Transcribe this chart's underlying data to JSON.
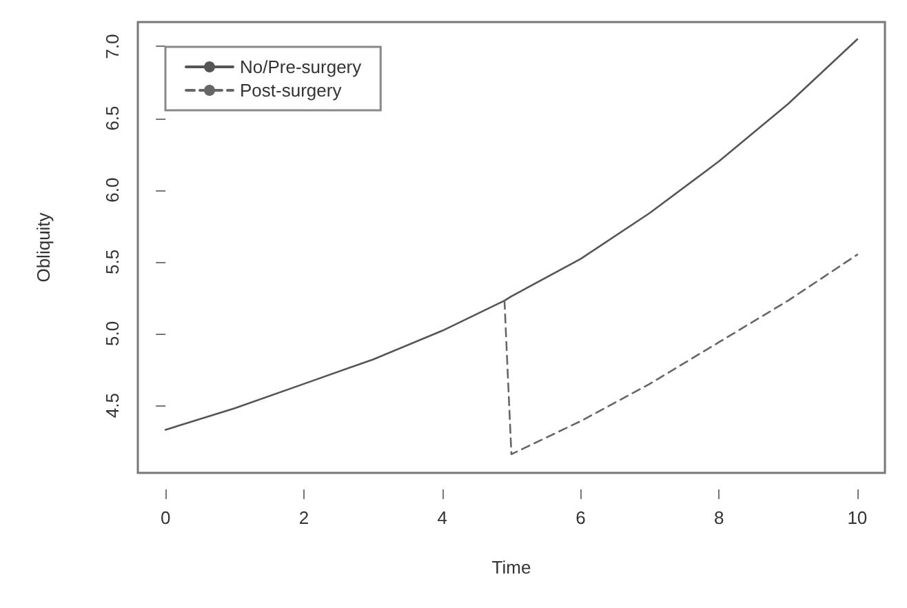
{
  "chart_data": {
    "type": "line",
    "xlabel": "Time",
    "ylabel": "Obliquity",
    "xlim": [
      -0.4,
      10.4
    ],
    "xticks": [
      0,
      2,
      4,
      6,
      8,
      10
    ],
    "ylim": [
      4.03,
      7.17
    ],
    "yticks": [
      4.5,
      {
        "value": 5,
        "label": "5.0"
      },
      5.5,
      {
        "value": 6,
        "label": "6.0"
      },
      6.5,
      {
        "value": 7,
        "label": "7.0"
      }
    ],
    "grid": false,
    "legend": "top left",
    "marker": "none",
    "series": [
      {
        "name": "No/Pre-surgery",
        "color": "#555555",
        "line_style": "solid",
        "x": [
          0,
          1,
          2,
          3,
          4,
          4.9,
          5,
          6,
          7,
          8,
          9,
          10
        ],
        "values": [
          4.33,
          4.48,
          4.65,
          4.82,
          5.02,
          5.23,
          5.26,
          5.52,
          5.84,
          6.2,
          6.6,
          7.05
        ]
      },
      {
        "name": "Post-surgery",
        "color": "#666666",
        "line_style": "dashed",
        "x": [
          4.9,
          5,
          6,
          7,
          8,
          9,
          10
        ],
        "values": [
          5.23,
          4.16,
          4.39,
          4.65,
          4.94,
          5.23,
          5.55
        ]
      }
    ]
  }
}
